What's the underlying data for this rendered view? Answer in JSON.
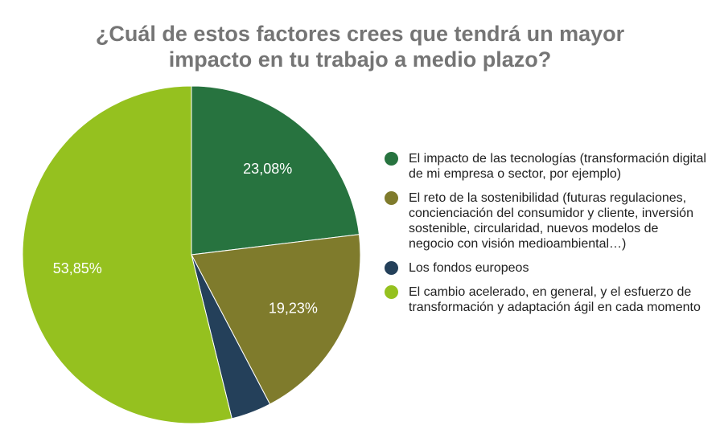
{
  "title": {
    "line1": "¿Cuál de estos factores crees que tendrá un mayor",
    "line2": "impacto en tu trabajo a medio plazo?"
  },
  "chart_data": {
    "type": "pie",
    "start_angle_deg": 0,
    "direction": "clockwise",
    "slices": [
      {
        "label": "El impacto de las tecnologías (transformación digital de mi empresa o sector, por ejemplo)",
        "value": 23.08,
        "display": "23,08%",
        "color": "#27733f"
      },
      {
        "label": "El reto de la sostenibilidad (futuras regulaciones, concienciación del consumidor y cliente, inversión sostenible, circularidad, nuevos modelos de negocio con visión medioambiental…)",
        "value": 19.23,
        "display": "19,23%",
        "color": "#7f7b2c"
      },
      {
        "label": "Los fondos europeos",
        "value": 3.84,
        "display": "",
        "color": "#24405a"
      },
      {
        "label": "El cambio acelerado, en general, y el esfuerzo de transformación y adaptación ágil en cada momento",
        "value": 53.85,
        "display": "53,85%",
        "color": "#95c11f"
      }
    ],
    "legend_position": "right"
  }
}
